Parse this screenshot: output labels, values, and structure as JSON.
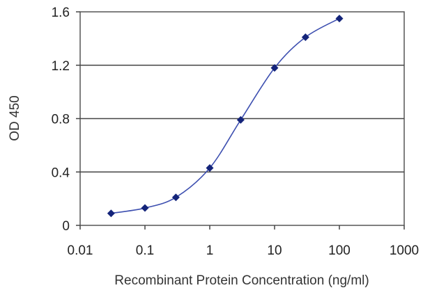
{
  "chart_data": {
    "type": "line",
    "title": "",
    "xlabel": "Recombinant Protein Concentration (ng/ml)",
    "ylabel": "OD 450",
    "x_scale": "log",
    "xlim": [
      0.01,
      1000
    ],
    "ylim": [
      0,
      1.6
    ],
    "x_ticks": [
      0.01,
      0.1,
      1,
      10,
      100,
      1000
    ],
    "x_tick_labels": [
      "0.01",
      "0.1",
      "1",
      "10",
      "100",
      "1000"
    ],
    "y_ticks": [
      0,
      0.4,
      0.8,
      1.2,
      1.6
    ],
    "y_tick_labels": [
      "0",
      "0.4",
      "0.8",
      "1.2",
      "1.6"
    ],
    "grid": "horizontal",
    "legend": "none",
    "series": [
      {
        "color": "#3d4fb0",
        "marker_color": "#14247a",
        "x": [
          0.03,
          0.1,
          0.3,
          1,
          3,
          10,
          30,
          100
        ],
        "y": [
          0.09,
          0.13,
          0.21,
          0.43,
          0.79,
          1.18,
          1.41,
          1.55
        ]
      }
    ]
  }
}
